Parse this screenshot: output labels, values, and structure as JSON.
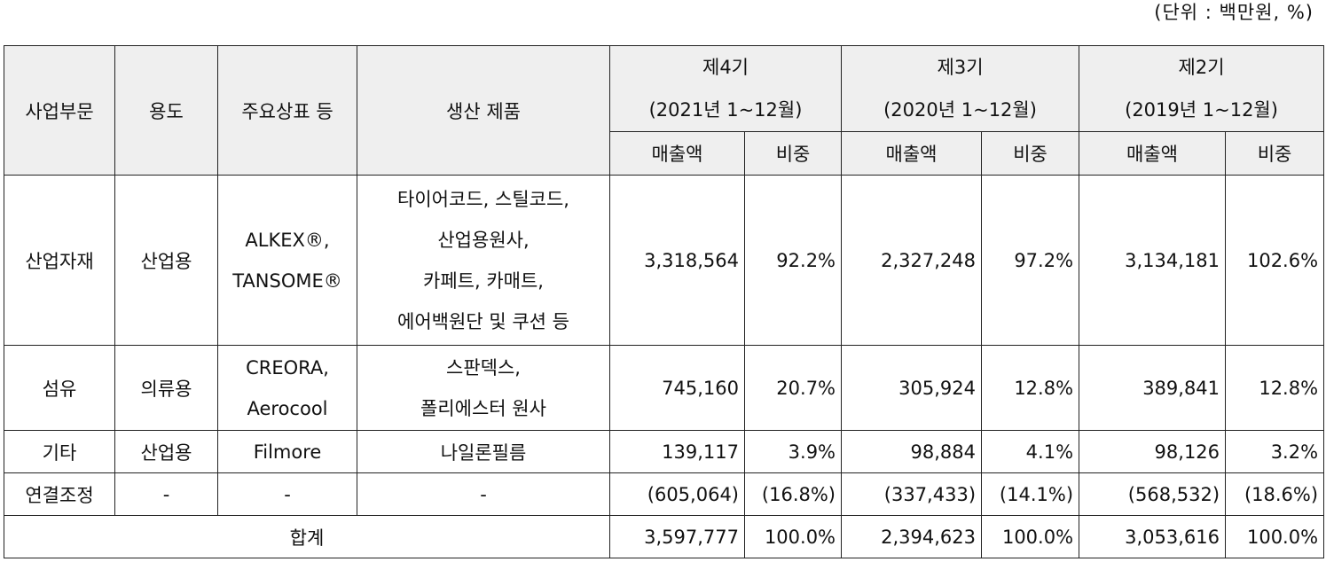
{
  "unit_note": "(단위 : 백만원, %)",
  "headers": {
    "segment": "사업부문",
    "usage": "용도",
    "brands": "주요상표 등",
    "products": "생산 제품",
    "periods": [
      {
        "name": "제4기",
        "range": "(2021년 1~12월)"
      },
      {
        "name": "제3기",
        "range": "(2020년 1~12월)"
      },
      {
        "name": "제2기",
        "range": "(2019년 1~12월)"
      }
    ],
    "sales": "매출액",
    "share": "비중"
  },
  "rows": [
    {
      "segment": "산업자재",
      "usage": "산업용",
      "brand_lines": [
        "ALKEX®,",
        "TANSOME®"
      ],
      "product_lines": [
        "타이어코드, 스틸코드,",
        "산업용원사,",
        "카페트, 카매트,",
        "에어백원단 및 쿠션 등"
      ],
      "values": [
        {
          "sales": "3,318,564",
          "share": "92.2%"
        },
        {
          "sales": "2,327,248",
          "share": "97.2%"
        },
        {
          "sales": "3,134,181",
          "share": "102.6%"
        }
      ]
    },
    {
      "segment": "섬유",
      "usage": "의류용",
      "brand_lines": [
        "CREORA,",
        "Aerocool"
      ],
      "product_lines": [
        "스판덱스,",
        "폴리에스터 원사"
      ],
      "values": [
        {
          "sales": "745,160",
          "share": "20.7%"
        },
        {
          "sales": "305,924",
          "share": "12.8%"
        },
        {
          "sales": "389,841",
          "share": "12.8%"
        }
      ]
    },
    {
      "segment": "기타",
      "usage": "산업용",
      "brand_lines": [
        "Filmore"
      ],
      "product_lines": [
        "나일론필름"
      ],
      "values": [
        {
          "sales": "139,117",
          "share": "3.9%"
        },
        {
          "sales": "98,884",
          "share": "4.1%"
        },
        {
          "sales": "98,126",
          "share": "3.2%"
        }
      ]
    },
    {
      "segment": "연결조정",
      "usage": "-",
      "brand_lines": [
        "-"
      ],
      "product_lines": [
        "-"
      ],
      "values": [
        {
          "sales": "(605,064)",
          "share": "(16.8%)"
        },
        {
          "sales": "(337,433)",
          "share": "(14.1%)"
        },
        {
          "sales": "(568,532)",
          "share": "(18.6%)"
        }
      ]
    }
  ],
  "total": {
    "label": "합계",
    "values": [
      {
        "sales": "3,597,777",
        "share": "100.0%"
      },
      {
        "sales": "2,394,623",
        "share": "100.0%"
      },
      {
        "sales": "3,053,616",
        "share": "100.0%"
      }
    ]
  }
}
